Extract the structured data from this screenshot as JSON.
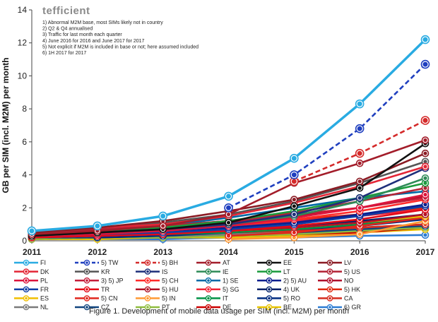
{
  "chart_data": {
    "type": "line",
    "title": "",
    "brand": "tefficient",
    "caption": "Figure 1. Development of mobile data usage per SIM (incl. M2M) per month",
    "ylabel": "GB per SIM (incl. M2M) per month",
    "xlabel": "",
    "ylim": [
      0,
      14
    ],
    "yticks": [
      "0",
      "2",
      "4",
      "6",
      "8",
      "10",
      "12",
      "14"
    ],
    "x": [
      "2011",
      "2012",
      "2013",
      "2014",
      "2015",
      "2016",
      "2017"
    ],
    "grid": false,
    "legend_position": "bottom",
    "notes": [
      "1) Abnormal M2M base, most SIMs likely not in country",
      "2) Q2 & Q4 annualised",
      "3) Traffic for last month each quarter",
      "4) June 2016 for 2016 and June 2017 for 2017",
      "5) Not explicit if M2M is included in base or not; here assumed included",
      "6) 1H 2017 for 2017"
    ],
    "series": [
      {
        "name": "FI",
        "color": "#29abe2",
        "dash": false,
        "values": [
          0.6,
          0.9,
          1.5,
          2.7,
          5.0,
          8.3,
          12.2
        ]
      },
      {
        "name": "5) TW",
        "color": "#1f3fbf",
        "dash": true,
        "values": [
          null,
          null,
          null,
          2.0,
          4.0,
          6.8,
          10.7
        ]
      },
      {
        "name": "5) BH",
        "color": "#d42a2a",
        "dash": true,
        "values": [
          null,
          null,
          null,
          null,
          3.6,
          5.3,
          7.3
        ]
      },
      {
        "name": "AT",
        "color": "#a31d2a",
        "dash": false,
        "values": [
          0.4,
          0.6,
          0.9,
          1.6,
          3.5,
          4.7,
          6.1
        ]
      },
      {
        "name": "EE",
        "color": "#111111",
        "dash": false,
        "values": [
          0.3,
          0.5,
          0.7,
          1.1,
          2.1,
          3.2,
          5.9
        ]
      },
      {
        "name": "LV",
        "color": "#8b1b24",
        "dash": false,
        "values": [
          0.5,
          0.8,
          1.2,
          1.8,
          2.5,
          3.6,
          5.3
        ]
      },
      {
        "name": "DK",
        "color": "#e32636",
        "dash": false,
        "values": [
          0.6,
          0.8,
          1.0,
          1.5,
          2.3,
          3.3,
          4.5
        ]
      },
      {
        "name": "KR",
        "color": "#555555",
        "dash": false,
        "values": [
          0.5,
          0.8,
          1.1,
          1.6,
          2.4,
          3.5,
          4.8
        ]
      },
      {
        "name": "IS",
        "color": "#1e2f7a",
        "dash": false,
        "values": [
          0.3,
          0.5,
          0.7,
          1.0,
          1.6,
          2.6,
          4.4
        ]
      },
      {
        "name": "IE",
        "color": "#2e8b57",
        "dash": false,
        "values": [
          0.4,
          0.5,
          0.7,
          1.0,
          1.5,
          2.4,
          3.8
        ]
      },
      {
        "name": "LT",
        "color": "#1a9b3c",
        "dash": false,
        "values": [
          0.3,
          0.5,
          0.8,
          1.2,
          1.8,
          2.6,
          3.5
        ]
      },
      {
        "name": "5) US",
        "color": "#b22234",
        "dash": false,
        "values": [
          0.5,
          0.7,
          0.9,
          1.2,
          1.7,
          2.4,
          3.2
        ]
      },
      {
        "name": "PL",
        "color": "#dc143c",
        "dash": false,
        "values": [
          0.3,
          0.4,
          0.6,
          0.9,
          1.4,
          2.0,
          2.8
        ]
      },
      {
        "name": "3) 5) JP",
        "color": "#c41e3a",
        "dash": false,
        "values": [
          null,
          null,
          0.9,
          1.2,
          1.6,
          2.0,
          2.6
        ]
      },
      {
        "name": "5) CH",
        "color": "#ff2a2a",
        "dash": false,
        "values": [
          null,
          null,
          0.6,
          0.9,
          1.3,
          1.8,
          2.5
        ]
      },
      {
        "name": "1) SE",
        "color": "#006aa7",
        "dash": false,
        "values": [
          0.4,
          0.6,
          0.9,
          1.4,
          2.0,
          2.6,
          3.0
        ]
      },
      {
        "name": "2) 5) AU",
        "color": "#0a1f8f",
        "dash": false,
        "values": [
          null,
          null,
          0.6,
          0.8,
          1.1,
          1.6,
          2.2
        ]
      },
      {
        "name": "NO",
        "color": "#b0102c",
        "dash": false,
        "values": [
          0.4,
          0.6,
          0.8,
          1.1,
          1.5,
          2.0,
          2.7
        ]
      },
      {
        "name": "FR",
        "color": "#0f3fa6",
        "dash": false,
        "values": [
          0.3,
          0.4,
          0.5,
          0.7,
          1.0,
          1.5,
          2.1
        ]
      },
      {
        "name": "TR",
        "color": "#e30a17",
        "dash": false,
        "values": [
          0.2,
          0.3,
          0.4,
          0.6,
          0.9,
          1.3,
          1.9
        ]
      },
      {
        "name": "5) HU",
        "color": "#b11226",
        "dash": false,
        "values": [
          null,
          0.3,
          0.4,
          0.6,
          0.8,
          1.1,
          1.6
        ]
      },
      {
        "name": "5) SG",
        "color": "#ee2536",
        "dash": false,
        "values": [
          null,
          null,
          0.7,
          0.9,
          1.2,
          1.5,
          1.9
        ]
      },
      {
        "name": "4) UK",
        "color": "#012169",
        "dash": false,
        "values": [
          0.2,
          0.3,
          0.4,
          0.6,
          0.9,
          1.2,
          1.6
        ]
      },
      {
        "name": "5) HK",
        "color": "#de2910",
        "dash": false,
        "values": [
          null,
          null,
          0.9,
          1.0,
          1.3,
          1.6,
          2.0
        ]
      },
      {
        "name": "ES",
        "color": "#f1bf00",
        "dash": false,
        "values": [
          0.2,
          0.3,
          0.4,
          0.6,
          0.8,
          1.1,
          1.5
        ]
      },
      {
        "name": "5) CN",
        "color": "#e1261c",
        "dash": false,
        "values": [
          null,
          null,
          null,
          0.3,
          0.5,
          0.9,
          1.4
        ]
      },
      {
        "name": "5) IN",
        "color": "#ff9933",
        "dash": false,
        "values": [
          null,
          null,
          null,
          0.1,
          0.2,
          0.4,
          1.2
        ]
      },
      {
        "name": "IT",
        "color": "#009246",
        "dash": false,
        "values": [
          0.2,
          0.3,
          0.4,
          0.5,
          0.7,
          1.0,
          1.4
        ]
      },
      {
        "name": "5) RO",
        "color": "#002b7f",
        "dash": false,
        "values": [
          null,
          0.2,
          0.3,
          0.5,
          0.7,
          0.9,
          1.3
        ]
      },
      {
        "name": "CA",
        "color": "#d52b1e",
        "dash": false,
        "values": [
          0.2,
          0.3,
          0.4,
          0.5,
          0.6,
          0.8,
          1.0
        ]
      },
      {
        "name": "NL",
        "color": "#7a7a7a",
        "dash": false,
        "values": [
          0.2,
          0.3,
          0.3,
          0.4,
          0.6,
          0.8,
          1.0
        ]
      },
      {
        "name": "CZ",
        "color": "#11457e",
        "dash": false,
        "values": [
          0.2,
          0.2,
          0.3,
          0.4,
          0.5,
          0.7,
          0.9
        ]
      },
      {
        "name": "PT",
        "color": "#8fbc3f",
        "dash": false,
        "values": [
          0.1,
          0.2,
          0.2,
          0.3,
          0.4,
          0.6,
          0.8
        ]
      },
      {
        "name": "DE",
        "color": "#cc0000",
        "dash": false,
        "values": [
          0.1,
          0.2,
          0.2,
          0.3,
          0.4,
          0.5,
          0.8
        ]
      },
      {
        "name": "BE",
        "color": "#e8c400",
        "dash": false,
        "values": [
          0.1,
          0.1,
          0.2,
          0.2,
          0.3,
          0.5,
          0.7
        ]
      },
      {
        "name": "6) GR",
        "color": "#2b7cd3",
        "dash": false,
        "values": [
          0.1,
          0.1,
          0.1,
          0.2,
          0.2,
          0.3,
          0.35
        ]
      }
    ]
  }
}
